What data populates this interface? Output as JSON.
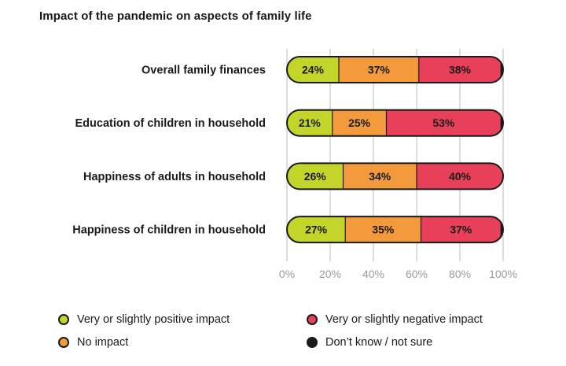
{
  "chart_data": {
    "type": "bar",
    "stacked": true,
    "orientation": "horizontal",
    "title": "Impact of the pandemic on aspects of family life",
    "categories": [
      "Overall family finances",
      "Education of children in household",
      "Happiness of adults in household",
      "Happiness of children in household"
    ],
    "series": [
      {
        "name": "Very or slightly positive impact",
        "color": "#c3d52a",
        "values": [
          24,
          21,
          26,
          27
        ]
      },
      {
        "name": "No impact",
        "color": "#f39a3c",
        "values": [
          37,
          25,
          34,
          35
        ]
      },
      {
        "name": "Very or slightly negative impact",
        "color": "#e8405a",
        "values": [
          38,
          53,
          40,
          37
        ]
      },
      {
        "name": "Don’t know / not sure",
        "color": "#1a1a1a",
        "values": [
          1,
          1,
          0,
          1
        ]
      }
    ],
    "data_labels": [
      [
        "24%",
        "37%",
        "38%",
        ""
      ],
      [
        "21%",
        "25%",
        "53%",
        ""
      ],
      [
        "26%",
        "34%",
        "40%",
        ""
      ],
      [
        "27%",
        "35%",
        "37%",
        ""
      ]
    ],
    "xlim": [
      0,
      100
    ],
    "x_ticks": [
      "0%",
      "20%",
      "40%",
      "60%",
      "80%",
      "100%"
    ],
    "grid": true,
    "legend_position": "bottom"
  }
}
